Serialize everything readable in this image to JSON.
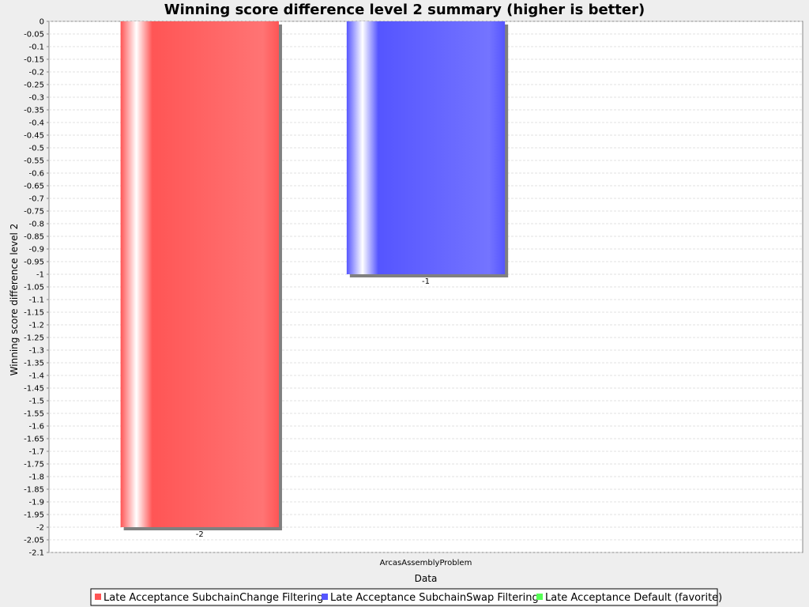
{
  "chart_data": {
    "type": "bar",
    "title": "Winning score difference level 2 summary (higher is better)",
    "xlabel": "Data",
    "ylabel": "Winning score difference level 2",
    "categories": [
      "ArcasAssemblyProblem"
    ],
    "ylim": [
      -2.1,
      0
    ],
    "ytick_step": 0.05,
    "grid": true,
    "legend_position": "bottom",
    "series": [
      {
        "name": "Late Acceptance SubchainChange Filtering",
        "values": [
          -2
        ],
        "color": "#ff5555",
        "data_labels": [
          "-2"
        ]
      },
      {
        "name": "Late Acceptance SubchainSwap Filtering",
        "values": [
          -1
        ],
        "color": "#5555ff",
        "data_labels": [
          "-1"
        ]
      },
      {
        "name": "Late Acceptance Default (favorite)",
        "values": [
          null
        ],
        "color": "#55ff55",
        "data_labels": [
          ""
        ]
      }
    ]
  }
}
